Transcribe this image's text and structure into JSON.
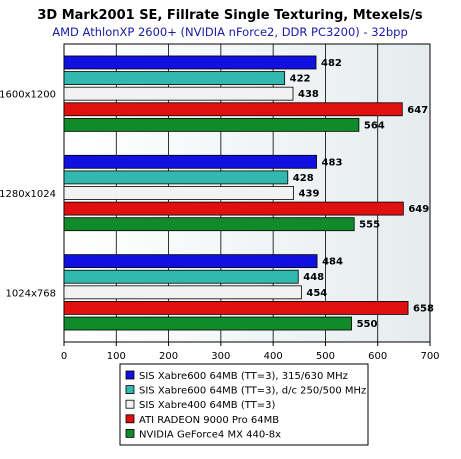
{
  "chart_data": {
    "type": "bar",
    "orientation": "horizontal",
    "title": "3D Mark2001 SE, Fillrate Single Texturing, Mtexels/s",
    "subtitle": "AMD AthlonXP 2600+ (NVIDIA nForce2, DDR PC3200) - 32bpp",
    "categories": [
      "1600x1200",
      "1280x1024",
      "1024x768"
    ],
    "xlim": [
      0,
      700
    ],
    "xticks": [
      0,
      100,
      200,
      300,
      400,
      500,
      600,
      700
    ],
    "grid": true,
    "legend_position": "bottom",
    "series": [
      {
        "name": "SIS Xabre600 64MB (TT=3), 315/630 MHz",
        "color": "#1010e0",
        "values": [
          482,
          483,
          484
        ]
      },
      {
        "name": "SIS Xabre600 64MB (TT=3), d/c 250/500 MHz",
        "color": "#33b8b0",
        "values": [
          422,
          428,
          448
        ]
      },
      {
        "name": "SIS Xabre400 64MB (TT=3)",
        "color": "#f2f2f2",
        "values": [
          438,
          439,
          454
        ]
      },
      {
        "name": "ATI RADEON 9000 Pro 64MB",
        "color": "#e01010",
        "values": [
          647,
          649,
          658
        ]
      },
      {
        "name": "NVIDIA GeForce4 MX 440-8x",
        "color": "#108a2a",
        "values": [
          564,
          555,
          550
        ]
      }
    ]
  }
}
